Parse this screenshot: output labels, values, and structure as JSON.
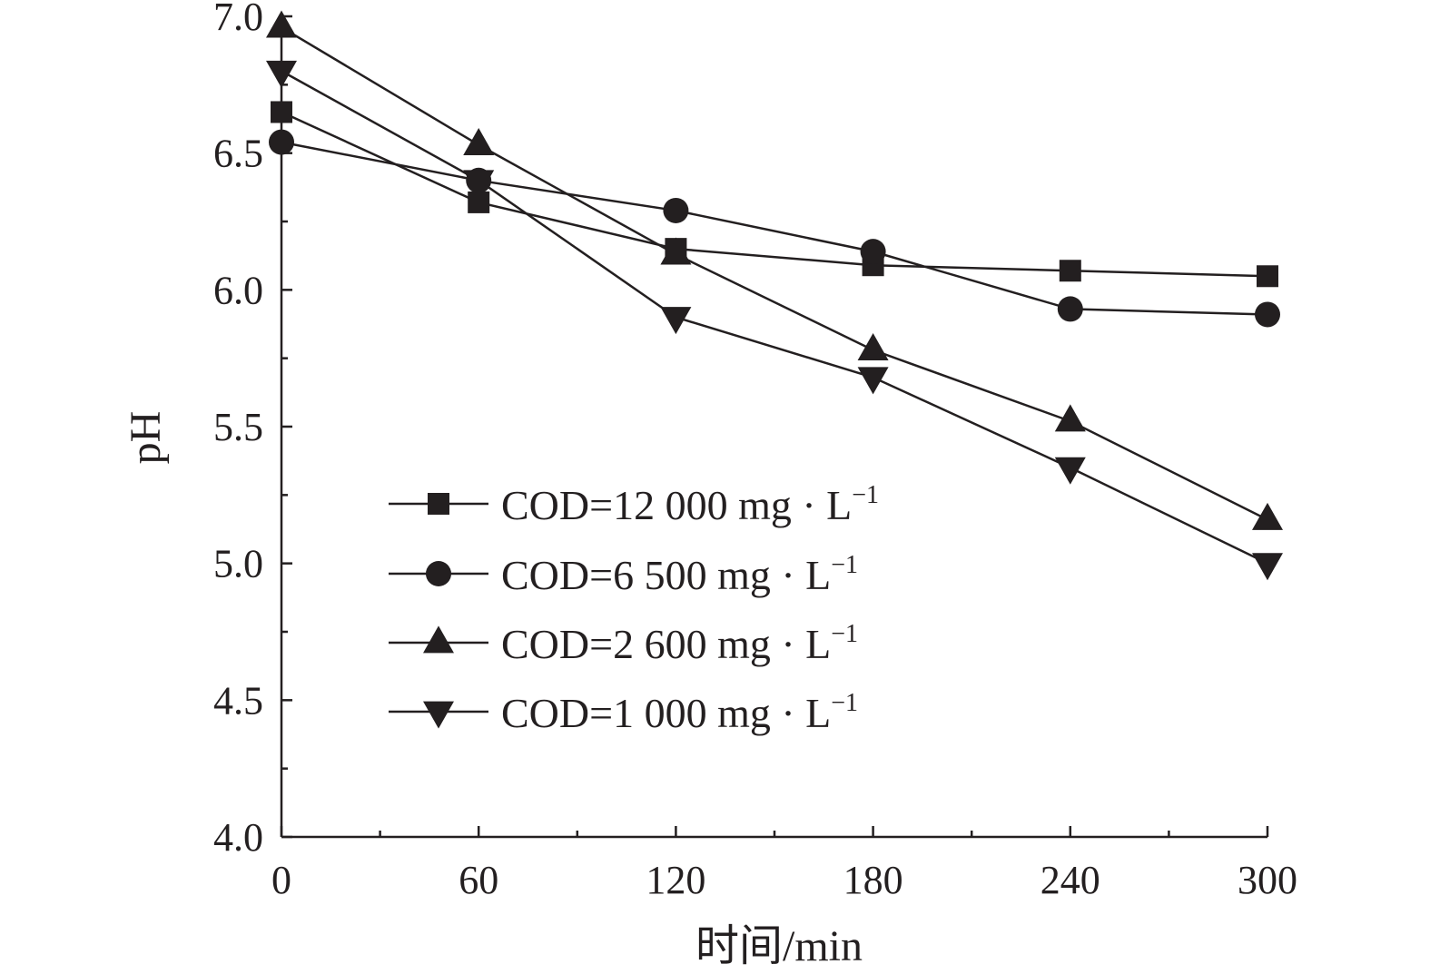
{
  "chart_data": {
    "type": "line",
    "title": "",
    "xlabel": "时间/min",
    "ylabel": "pH",
    "xlim": [
      0,
      300
    ],
    "ylim": [
      4.0,
      7.0
    ],
    "x_ticks": [
      "0",
      "60",
      "120",
      "180",
      "240",
      "300"
    ],
    "y_ticks": [
      "4.0",
      "4.5",
      "5.0",
      "5.5",
      "6.0",
      "6.5",
      "7.0"
    ],
    "x": [
      0,
      60,
      120,
      180,
      240,
      300
    ],
    "grid": false,
    "legend_position": "center-left",
    "series": [
      {
        "name": "COD=12 000 mg · L⁻¹",
        "name_main": "COD=12 000 mg · L",
        "name_sup": "−1",
        "marker": "square",
        "values": [
          6.65,
          6.32,
          6.15,
          6.09,
          6.07,
          6.05
        ]
      },
      {
        "name": "COD=6 500 mg · L⁻¹",
        "name_main": "COD=6 500 mg · L",
        "name_sup": "−1",
        "marker": "circle",
        "values": [
          6.54,
          6.4,
          6.29,
          6.14,
          5.93,
          5.91
        ]
      },
      {
        "name": "COD=2 600 mg · L⁻¹",
        "name_main": "COD=2 600 mg · L",
        "name_sup": "−1",
        "marker": "triangle-up",
        "values": [
          6.96,
          6.53,
          6.13,
          5.78,
          5.52,
          5.16
        ]
      },
      {
        "name": "COD=1 000 mg · L⁻¹",
        "name_main": "COD=1 000 mg · L",
        "name_sup": "−1",
        "marker": "triangle-down",
        "values": [
          6.8,
          6.4,
          5.9,
          5.68,
          5.35,
          5.0
        ]
      }
    ],
    "colors": {
      "line": "#231f20",
      "marker": "#231f20"
    }
  }
}
